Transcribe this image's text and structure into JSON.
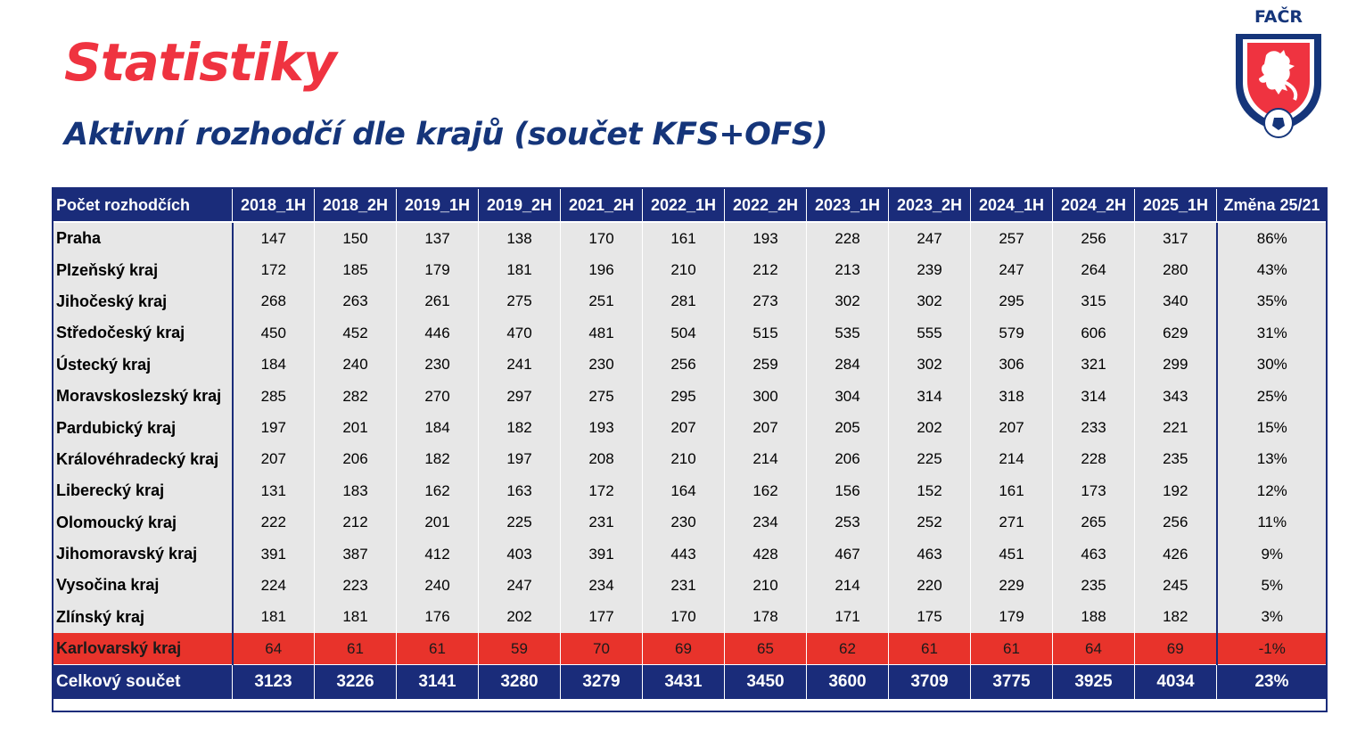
{
  "title": "Statistiky",
  "subtitle": "Aktivní rozhodčí dle krajů (součet KFS+OFS)",
  "logo": {
    "text": "FAČR",
    "icon": "facr-crest-icon"
  },
  "colors": {
    "title": "#ef3340",
    "subtitle": "#15357a",
    "header_bg": "#1a2c7a",
    "row_bg": "#e7e7e7",
    "highlight_bg": "#e8332b"
  },
  "table": {
    "header_label": "Počet rozhodčích",
    "columns": [
      "2018_1H",
      "2018_2H",
      "2019_1H",
      "2019_2H",
      "2021_2H",
      "2022_1H",
      "2022_2H",
      "2023_1H",
      "2023_2H",
      "2024_1H",
      "2024_2H",
      "2025_1H",
      "Změna 25/21"
    ],
    "rows": [
      {
        "region": "Praha",
        "values": [
          "147",
          "150",
          "137",
          "138",
          "170",
          "161",
          "193",
          "228",
          "247",
          "257",
          "256",
          "317"
        ],
        "change": "86%"
      },
      {
        "region": "Plzeňský kraj",
        "values": [
          "172",
          "185",
          "179",
          "181",
          "196",
          "210",
          "212",
          "213",
          "239",
          "247",
          "264",
          "280"
        ],
        "change": "43%"
      },
      {
        "region": "Jihočeský kraj",
        "values": [
          "268",
          "263",
          "261",
          "275",
          "251",
          "281",
          "273",
          "302",
          "302",
          "295",
          "315",
          "340"
        ],
        "change": "35%"
      },
      {
        "region": "Středočeský kraj",
        "values": [
          "450",
          "452",
          "446",
          "470",
          "481",
          "504",
          "515",
          "535",
          "555",
          "579",
          "606",
          "629"
        ],
        "change": "31%"
      },
      {
        "region": "Ústecký kraj",
        "values": [
          "184",
          "240",
          "230",
          "241",
          "230",
          "256",
          "259",
          "284",
          "302",
          "306",
          "321",
          "299"
        ],
        "change": "30%"
      },
      {
        "region": "Moravskoslezský kraj",
        "values": [
          "285",
          "282",
          "270",
          "297",
          "275",
          "295",
          "300",
          "304",
          "314",
          "318",
          "314",
          "343"
        ],
        "change": "25%"
      },
      {
        "region": "Pardubický kraj",
        "values": [
          "197",
          "201",
          "184",
          "182",
          "193",
          "207",
          "207",
          "205",
          "202",
          "207",
          "233",
          "221"
        ],
        "change": "15%"
      },
      {
        "region": "Královéhradecký kraj",
        "values": [
          "207",
          "206",
          "182",
          "197",
          "208",
          "210",
          "214",
          "206",
          "225",
          "214",
          "228",
          "235"
        ],
        "change": "13%"
      },
      {
        "region": "Liberecký kraj",
        "values": [
          "131",
          "183",
          "162",
          "163",
          "172",
          "164",
          "162",
          "156",
          "152",
          "161",
          "173",
          "192"
        ],
        "change": "12%"
      },
      {
        "region": "Olomoucký kraj",
        "values": [
          "222",
          "212",
          "201",
          "225",
          "231",
          "230",
          "234",
          "253",
          "252",
          "271",
          "265",
          "256"
        ],
        "change": "11%"
      },
      {
        "region": "Jihomoravský kraj",
        "values": [
          "391",
          "387",
          "412",
          "403",
          "391",
          "443",
          "428",
          "467",
          "463",
          "451",
          "463",
          "426"
        ],
        "change": "9%"
      },
      {
        "region": "Vysočina kraj",
        "values": [
          "224",
          "223",
          "240",
          "247",
          "234",
          "231",
          "210",
          "214",
          "220",
          "229",
          "235",
          "245"
        ],
        "change": "5%"
      },
      {
        "region": "Zlínský kraj",
        "values": [
          "181",
          "181",
          "176",
          "202",
          "177",
          "170",
          "178",
          "171",
          "175",
          "179",
          "188",
          "182"
        ],
        "change": "3%"
      },
      {
        "region": "Karlovarský kraj",
        "values": [
          "64",
          "61",
          "61",
          "59",
          "70",
          "69",
          "65",
          "62",
          "61",
          "61",
          "64",
          "69"
        ],
        "change": "-1%",
        "highlight": true
      }
    ],
    "total": {
      "label": "Celkový součet",
      "values": [
        "3123",
        "3226",
        "3141",
        "3280",
        "3279",
        "3431",
        "3450",
        "3600",
        "3709",
        "3775",
        "3925",
        "4034"
      ],
      "change": "23%"
    }
  }
}
